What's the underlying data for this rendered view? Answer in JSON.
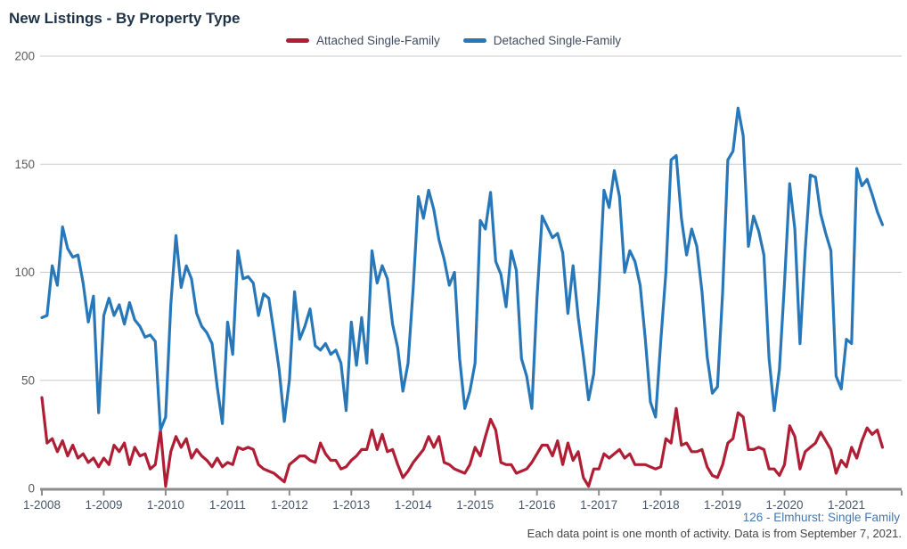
{
  "header": {
    "title": "New Listings - By Property Type"
  },
  "legend": {
    "items": [
      {
        "label": "Attached Single-Family",
        "color": "#B01E35"
      },
      {
        "label": "Detached Single-Family",
        "color": "#2878B9"
      }
    ]
  },
  "footer": {
    "source": "126 - Elmhurst: Single Family",
    "note": "Each data point is one month of activity. Data is from September 7, 2021."
  },
  "colors": {
    "attached": "#B01E35",
    "detached": "#2878B9",
    "grid": "#CBCBCB",
    "axis": "#8C8C8C",
    "y_label": "#595959",
    "x_label": "#47566B",
    "title": "#1E3347"
  },
  "chart_data": {
    "type": "line",
    "title": "New Listings - By Property Type",
    "xlabel": "",
    "ylabel": "",
    "ylim": [
      0,
      200
    ],
    "y_ticks": [
      0,
      50,
      100,
      150,
      200
    ],
    "grid": "horizontal",
    "legend_position": "top",
    "x_start": "1-2008",
    "x_end": "8-2021",
    "x_interval": "month",
    "x_tick_labels": [
      "1-2008",
      "1-2009",
      "1-2010",
      "1-2011",
      "1-2012",
      "1-2013",
      "1-2014",
      "1-2015",
      "1-2016",
      "1-2017",
      "1-2018",
      "1-2019",
      "1-2020",
      "1-2021"
    ],
    "series": [
      {
        "name": "Attached Single-Family",
        "color": "#B01E35",
        "values": [
          42,
          21,
          23,
          17,
          22,
          15,
          20,
          14,
          16,
          12,
          14,
          10,
          14,
          11,
          20,
          17,
          21,
          11,
          19,
          15,
          16,
          9,
          11,
          27,
          1,
          17,
          24,
          19,
          23,
          14,
          18,
          15,
          13,
          10,
          14,
          10,
          12,
          11,
          19,
          18,
          19,
          18,
          11,
          9,
          8,
          7,
          5,
          3,
          11,
          13,
          15,
          15,
          13,
          12,
          21,
          16,
          13,
          13,
          9,
          10,
          13,
          15,
          18,
          18,
          27,
          18,
          25,
          17,
          18,
          11,
          5,
          8,
          12,
          15,
          18,
          24,
          19,
          24,
          12,
          11,
          9,
          8,
          7,
          11,
          19,
          15,
          24,
          32,
          27,
          12,
          11,
          11,
          7,
          8,
          9,
          12,
          16,
          20,
          20,
          15,
          22,
          11,
          21,
          13,
          17,
          5,
          1,
          9,
          9,
          16,
          14,
          16,
          18,
          14,
          16,
          11,
          11,
          11,
          10,
          9,
          10,
          23,
          21,
          37,
          20,
          21,
          17,
          17,
          18,
          10,
          6,
          5,
          11,
          21,
          23,
          35,
          33,
          18,
          18,
          19,
          18,
          9,
          9,
          6,
          11,
          29,
          24,
          9,
          17,
          19,
          21,
          26,
          22,
          18,
          7,
          13,
          10,
          19,
          14,
          22,
          28,
          25,
          27,
          19
        ]
      },
      {
        "name": "Detached Single-Family",
        "color": "#2878B9",
        "values": [
          79,
          80,
          103,
          94,
          121,
          111,
          107,
          108,
          95,
          77,
          89,
          35,
          80,
          88,
          80,
          85,
          76,
          86,
          78,
          75,
          70,
          71,
          68,
          27,
          33,
          85,
          117,
          93,
          103,
          97,
          81,
          75,
          72,
          67,
          47,
          30,
          77,
          62,
          110,
          97,
          98,
          95,
          80,
          90,
          88,
          72,
          55,
          31,
          50,
          91,
          69,
          75,
          83,
          66,
          64,
          67,
          62,
          64,
          58,
          36,
          77,
          57,
          79,
          58,
          110,
          95,
          103,
          97,
          76,
          65,
          45,
          58,
          93,
          135,
          125,
          138,
          129,
          115,
          106,
          94,
          100,
          60,
          37,
          45,
          58,
          124,
          120,
          137,
          105,
          99,
          84,
          110,
          101,
          60,
          52,
          37,
          88,
          126,
          121,
          116,
          118,
          109,
          81,
          103,
          79,
          61,
          41,
          53,
          91,
          138,
          130,
          147,
          135,
          100,
          110,
          105,
          94,
          69,
          40,
          33,
          68,
          100,
          152,
          154,
          125,
          108,
          120,
          112,
          91,
          61,
          44,
          47,
          91,
          152,
          156,
          176,
          163,
          112,
          126,
          119,
          108,
          60,
          36,
          55,
          95,
          141,
          120,
          67,
          110,
          145,
          144,
          127,
          118,
          110,
          52,
          46,
          69,
          67,
          148,
          140,
          143,
          136,
          128,
          122
        ]
      }
    ]
  }
}
